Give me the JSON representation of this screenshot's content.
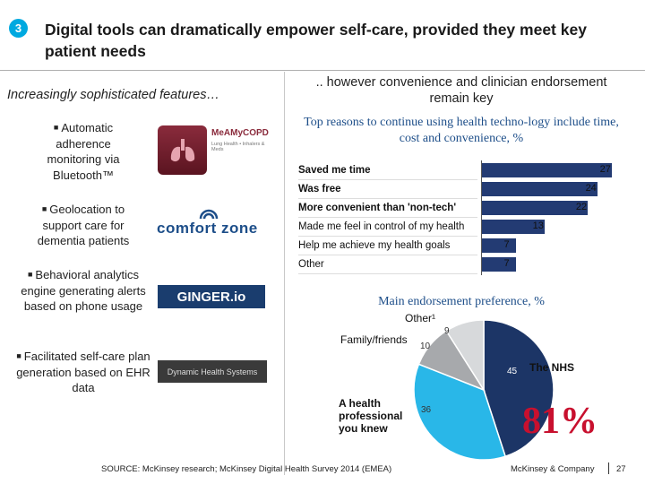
{
  "header": {
    "section_number": "3",
    "title": "Digital tools can dramatically empower self-care, provided they meet key patient needs"
  },
  "left": {
    "subtitle": "Increasingly sophisticated features…",
    "features": [
      {
        "label": "Automatic adherence monitoring via Bluetooth™",
        "logo": "MeAMyCOPD",
        "logo_caption": "Lung Health • Inhalers & Meds"
      },
      {
        "label": "Geolocation to support care for dementia patients",
        "logo": "comfort zone"
      },
      {
        "label": "Behavioral analytics engine generating alerts based on phone usage",
        "logo": "GINGER.io"
      },
      {
        "label": "Facilitated self-care plan generation based on EHR data",
        "logo": "Dynamic Health Systems"
      }
    ]
  },
  "right": {
    "subtitle": ".. however convenience and clinician endorsement remain key"
  },
  "chart_data": [
    {
      "type": "bar",
      "title": "Top reasons to continue using health techno-logy include time, cost and convenience, %",
      "categories": [
        "Saved me time",
        "Was free",
        "More convenient than 'non-tech'",
        "Made me feel in control of my health",
        "Help me achieve my health goals",
        "Other"
      ],
      "values": [
        27,
        24,
        22,
        13,
        7,
        7
      ],
      "bold_categories": [
        true,
        true,
        true,
        false,
        false,
        false
      ],
      "color": "#233b73",
      "xlim": [
        0,
        28
      ]
    },
    {
      "type": "pie",
      "title": "Main endorsement preference, %",
      "slices": [
        {
          "label": "The NHS",
          "value": 45,
          "color": "#1c3566"
        },
        {
          "label": "A health professional you knew",
          "value": 36,
          "color": "#29b7e8"
        },
        {
          "label": "Family/friends",
          "value": 10,
          "color": "#a7a9ac"
        },
        {
          "label": "Other¹",
          "value": 9,
          "color": "#d7d9db"
        }
      ],
      "highlight": "81%"
    }
  ],
  "footer": {
    "source": "SOURCE: McKinsey research; McKinsey Digital Health Survey 2014 (EMEA)",
    "company": "McKinsey & Company",
    "page": "27"
  }
}
